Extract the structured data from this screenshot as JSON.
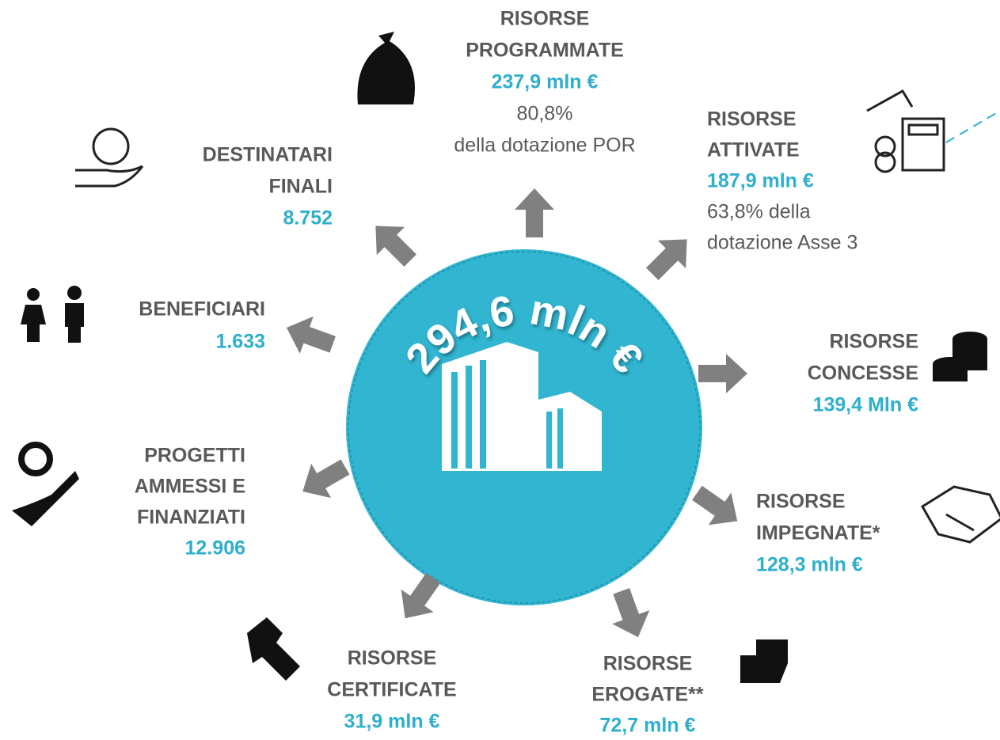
{
  "center": {
    "amount": "294,6 mln €"
  },
  "items": [
    {
      "label": [
        "RISORSE",
        "PROGRAMMATE"
      ],
      "value": "237,9 mln €",
      "note": [
        "80,8%",
        "della dotazione POR"
      ]
    },
    {
      "label": [
        "DESTINATARI",
        "FINALI"
      ],
      "value": "8.752"
    },
    {
      "label": [
        "RISORSE",
        "ATTIVATE"
      ],
      "value": "187,9 mln €",
      "note": [
        "63,8% della",
        "dotazione Asse 3"
      ]
    },
    {
      "label": [
        "BENEFICIARI"
      ],
      "value": "1.633"
    },
    {
      "label": [
        "RISORSE",
        "CONCESSE"
      ],
      "value": "139,4 Mln €"
    },
    {
      "label": [
        "PROGETTI",
        "AMMESSI E",
        "FINANZIATI"
      ],
      "value": "12.906"
    },
    {
      "label": [
        "RISORSE",
        "IMPEGNATE*"
      ],
      "value": "128,3 mln €"
    },
    {
      "label": [
        "RISORSE",
        "CERTIFICATE"
      ],
      "value": "31,9 mln €"
    },
    {
      "label": [
        "RISORSE",
        "EROGATE**"
      ],
      "value": "72,7 mln €"
    }
  ]
}
